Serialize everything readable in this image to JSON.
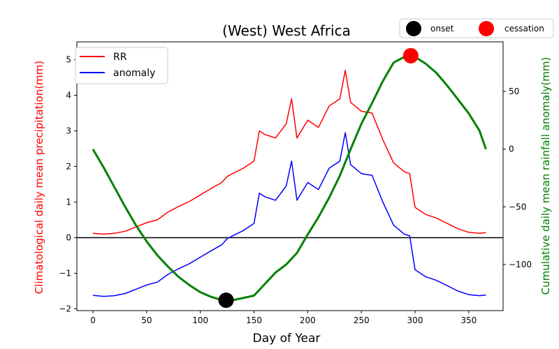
{
  "chart_data": {
    "type": "line",
    "title": "(West) West Africa",
    "xlabel": "Day of Year",
    "ylabel_left": "Climatological daily mean precipitation(mm)",
    "ylabel_right": "Cumulative daily mean rainfall anomaly(mm)",
    "xlim": [
      -15,
      382
    ],
    "ylim_left": [
      -2.05,
      5.5
    ],
    "ylim_right": [
      -140,
      93
    ],
    "x_ticks": [
      0,
      50,
      100,
      150,
      200,
      250,
      300,
      350
    ],
    "y_left_ticks": [
      -2,
      -1,
      0,
      1,
      2,
      3,
      4,
      5
    ],
    "y_right_ticks": [
      -100,
      -50,
      0,
      50
    ],
    "zero_line": 0,
    "colors": {
      "RR": "#ff0000",
      "anomaly": "#0000ff",
      "cumulative": "#008000",
      "onset": "#000000",
      "cessation": "#ff0000"
    },
    "legend_left": {
      "position": "upper-left",
      "entries": [
        "RR",
        "anomaly"
      ]
    },
    "legend_right": {
      "position": "top-right",
      "entries": [
        "onset",
        "cessation"
      ]
    },
    "series": [
      {
        "name": "RR",
        "axis": "left",
        "x": [
          0,
          10,
          20,
          30,
          40,
          50,
          60,
          70,
          80,
          90,
          100,
          110,
          120,
          125,
          130,
          140,
          150,
          155,
          160,
          170,
          180,
          185,
          190,
          200,
          210,
          220,
          230,
          235,
          240,
          250,
          260,
          270,
          280,
          290,
          295,
          300,
          310,
          320,
          330,
          340,
          350,
          360,
          366
        ],
        "values": [
          0.12,
          0.1,
          0.12,
          0.18,
          0.3,
          0.42,
          0.5,
          0.72,
          0.88,
          1.02,
          1.2,
          1.38,
          1.55,
          1.72,
          1.8,
          1.95,
          2.15,
          3.0,
          2.9,
          2.8,
          3.2,
          3.9,
          2.8,
          3.3,
          3.1,
          3.7,
          3.9,
          4.7,
          3.8,
          3.55,
          3.5,
          2.75,
          2.1,
          1.85,
          1.8,
          0.85,
          0.65,
          0.55,
          0.4,
          0.25,
          0.15,
          0.12,
          0.14
        ]
      },
      {
        "name": "anomaly",
        "axis": "left",
        "x": [
          0,
          10,
          20,
          30,
          40,
          50,
          60,
          70,
          80,
          90,
          100,
          110,
          120,
          125,
          130,
          140,
          150,
          155,
          160,
          170,
          180,
          185,
          190,
          200,
          210,
          220,
          230,
          235,
          240,
          250,
          260,
          270,
          280,
          290,
          295,
          300,
          310,
          320,
          330,
          340,
          350,
          360,
          366
        ],
        "values": [
          -1.62,
          -1.65,
          -1.63,
          -1.57,
          -1.45,
          -1.33,
          -1.25,
          -1.03,
          -0.87,
          -0.73,
          -0.55,
          -0.37,
          -0.2,
          -0.03,
          0.05,
          0.2,
          0.4,
          1.25,
          1.15,
          1.05,
          1.45,
          2.15,
          1.05,
          1.55,
          1.35,
          1.95,
          2.15,
          2.95,
          2.05,
          1.8,
          1.75,
          1.0,
          0.35,
          0.1,
          0.05,
          -0.9,
          -1.1,
          -1.2,
          -1.35,
          -1.5,
          -1.6,
          -1.63,
          -1.61
        ]
      },
      {
        "name": "cumulative",
        "axis": "right",
        "x": [
          0,
          10,
          20,
          30,
          40,
          50,
          60,
          70,
          80,
          90,
          100,
          110,
          120,
          125,
          130,
          140,
          150,
          160,
          170,
          180,
          190,
          200,
          210,
          220,
          230,
          240,
          250,
          260,
          270,
          280,
          290,
          296,
          300,
          310,
          320,
          330,
          340,
          350,
          360,
          366
        ],
        "values": [
          0,
          -16,
          -33,
          -50,
          -66,
          -80,
          -92,
          -102,
          -111,
          -118,
          -124,
          -128,
          -131,
          -131.5,
          -131,
          -129,
          -127,
          -117,
          -107,
          -100,
          -90,
          -74,
          -59,
          -42,
          -23,
          0,
          22,
          40,
          59,
          75,
          80,
          81,
          80,
          74,
          66,
          55,
          43,
          31,
          16,
          0
        ]
      }
    ],
    "markers": [
      {
        "name": "onset",
        "x": 124,
        "value": -131,
        "axis": "right"
      },
      {
        "name": "cessation",
        "x": 296,
        "value": 81,
        "axis": "right"
      }
    ]
  }
}
